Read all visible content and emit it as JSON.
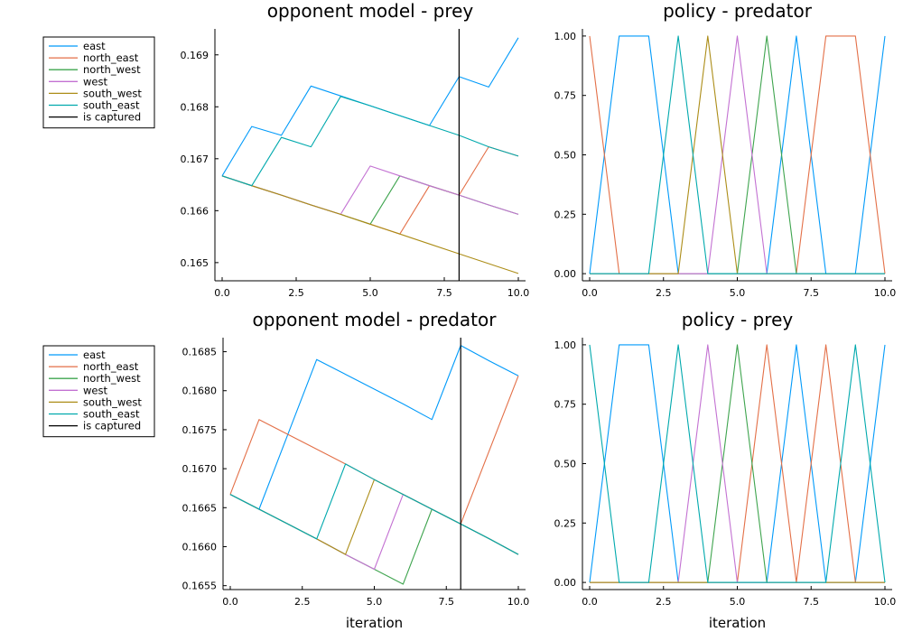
{
  "chart_data": [
    {
      "type": "line",
      "title": "opponent model - prey",
      "xlabel": "",
      "xlim": [
        0,
        10
      ],
      "ylim": [
        0.16465,
        0.1695
      ],
      "xticks": [
        0,
        2.5,
        5,
        7.5,
        10
      ],
      "xtick_labels": [
        "0.0",
        "2.5",
        "5.0",
        "7.5",
        "10.0"
      ],
      "yticks": [
        0.165,
        0.166,
        0.167,
        0.168,
        0.169
      ],
      "ytick_labels": [
        "0.165",
        "0.166",
        "0.167",
        "0.168",
        "0.169"
      ],
      "legend_position": "outside-left",
      "captured_at": 8,
      "x": [
        0,
        1,
        2,
        3,
        4,
        5,
        6,
        7,
        8,
        9,
        10
      ],
      "series": [
        {
          "name": "east",
          "color": "#009AFA",
          "values": [
            0.16667,
            0.16762,
            0.16745,
            0.1684,
            0.16821,
            0.16802,
            0.16783,
            0.16764,
            0.16858,
            0.16838,
            0.16933
          ]
        },
        {
          "name": "north_east",
          "color": "#E36F47",
          "values": [
            0.16667,
            0.16648,
            0.1663,
            0.16611,
            0.16593,
            0.16574,
            0.16555,
            0.16648,
            0.1663,
            0.16723,
            0.16705
          ]
        },
        {
          "name": "north_west",
          "color": "#3EA44E",
          "values": [
            0.16667,
            0.16648,
            0.1663,
            0.16611,
            0.16593,
            0.16574,
            0.16667,
            0.16648,
            0.1663,
            0.16611,
            0.16593
          ]
        },
        {
          "name": "west",
          "color": "#C371D2",
          "values": [
            0.16667,
            0.16648,
            0.1663,
            0.16611,
            0.16593,
            0.16686,
            0.16667,
            0.16648,
            0.1663,
            0.16611,
            0.16593
          ]
        },
        {
          "name": "south_west",
          "color": "#AC8D18",
          "values": [
            0.16667,
            0.16648,
            0.1663,
            0.16611,
            0.16593,
            0.16574,
            0.16555,
            0.16536,
            0.16517,
            0.16498,
            0.16479
          ]
        },
        {
          "name": "south_east",
          "color": "#00A9AD",
          "values": [
            0.16667,
            0.16648,
            0.16741,
            0.16723,
            0.1682,
            0.16802,
            0.16783,
            0.16764,
            0.16745,
            0.16723,
            0.16705
          ]
        },
        {
          "name": "is captured",
          "color": "#000000",
          "kind": "vline"
        }
      ]
    },
    {
      "type": "line",
      "title": "policy - predator",
      "xlabel": "",
      "xlim": [
        0,
        10
      ],
      "ylim": [
        -0.03,
        1.03
      ],
      "xticks": [
        0,
        2.5,
        5,
        7.5,
        10
      ],
      "xtick_labels": [
        "0.0",
        "2.5",
        "5.0",
        "7.5",
        "10.0"
      ],
      "yticks": [
        0,
        0.25,
        0.5,
        0.75,
        1
      ],
      "ytick_labels": [
        "0.00",
        "0.25",
        "0.50",
        "0.75",
        "1.00"
      ],
      "x": [
        0,
        1,
        2,
        3,
        4,
        5,
        6,
        7,
        8,
        9,
        10
      ],
      "series": [
        {
          "color": "#009AFA",
          "values": [
            0,
            1,
            1,
            0,
            0,
            0,
            0,
            1,
            0,
            0,
            1
          ]
        },
        {
          "color": "#E36F47",
          "values": [
            1,
            0,
            0,
            0,
            0,
            0,
            0,
            0,
            1,
            1,
            0
          ]
        },
        {
          "color": "#3EA44E",
          "values": [
            0,
            0,
            0,
            0,
            0,
            0,
            1,
            0,
            0,
            0,
            0
          ]
        },
        {
          "color": "#C371D2",
          "values": [
            0,
            0,
            0,
            0,
            0,
            1,
            0,
            0,
            0,
            0,
            0
          ]
        },
        {
          "color": "#AC8D18",
          "values": [
            0,
            0,
            0,
            0,
            1,
            0,
            0,
            0,
            0,
            0,
            0
          ]
        },
        {
          "color": "#00A9AD",
          "values": [
            0,
            0,
            0,
            1,
            0,
            0,
            0,
            0,
            0,
            0,
            0
          ]
        }
      ]
    },
    {
      "type": "line",
      "title": "opponent model - predator",
      "xlabel": "iteration",
      "xlim": [
        0,
        10
      ],
      "ylim": [
        0.16545,
        0.16868
      ],
      "xticks": [
        0,
        2.5,
        5,
        7.5,
        10
      ],
      "xtick_labels": [
        "0.0",
        "2.5",
        "5.0",
        "7.5",
        "10.0"
      ],
      "yticks": [
        0.1655,
        0.166,
        0.1665,
        0.167,
        0.1675,
        0.168,
        0.1685
      ],
      "ytick_labels": [
        "0.1655",
        "0.1660",
        "0.1665",
        "0.1670",
        "0.1675",
        "0.1680",
        "0.1685"
      ],
      "legend_position": "outside-left",
      "captured_at": 8,
      "x": [
        0,
        1,
        2,
        3,
        4,
        5,
        6,
        7,
        8,
        9,
        10
      ],
      "series": [
        {
          "name": "east",
          "color": "#009AFA",
          "values": [
            0.16667,
            0.16648,
            0.16744,
            0.1684,
            0.16821,
            0.16802,
            0.16783,
            0.16763,
            0.16858,
            0.16838,
            0.16819
          ]
        },
        {
          "name": "north_east",
          "color": "#E36F47",
          "values": [
            0.16667,
            0.16763,
            0.16744,
            0.16725,
            0.16706,
            0.16686,
            0.16667,
            0.16648,
            0.16629,
            0.16724,
            0.16819
          ]
        },
        {
          "name": "north_west",
          "color": "#3EA44E",
          "values": [
            0.16667,
            0.16648,
            0.16629,
            0.1661,
            0.1659,
            0.16571,
            0.16552,
            0.16648,
            0.16629,
            0.1661,
            0.1659
          ]
        },
        {
          "name": "west",
          "color": "#C371D2",
          "values": [
            0.16667,
            0.16648,
            0.16629,
            0.1661,
            0.1659,
            0.16571,
            0.16667,
            0.16648,
            0.16629,
            0.1661,
            0.1659
          ]
        },
        {
          "name": "south_west",
          "color": "#AC8D18",
          "values": [
            0.16667,
            0.16648,
            0.16629,
            0.1661,
            0.1659,
            0.16686,
            0.16667,
            0.16648,
            0.16629,
            0.1661,
            0.1659
          ]
        },
        {
          "name": "south_east",
          "color": "#00A9AD",
          "values": [
            0.16667,
            0.16648,
            0.16629,
            0.1661,
            0.16706,
            0.16686,
            0.16667,
            0.16648,
            0.16629,
            0.1661,
            0.1659
          ]
        },
        {
          "name": "is captured",
          "color": "#000000",
          "kind": "vline"
        }
      ]
    },
    {
      "type": "line",
      "title": "policy - prey",
      "xlabel": "iteration",
      "xlim": [
        0,
        10
      ],
      "ylim": [
        -0.03,
        1.03
      ],
      "xticks": [
        0,
        2.5,
        5,
        7.5,
        10
      ],
      "xtick_labels": [
        "0.0",
        "2.5",
        "5.0",
        "7.5",
        "10.0"
      ],
      "yticks": [
        0,
        0.25,
        0.5,
        0.75,
        1
      ],
      "ytick_labels": [
        "0.00",
        "0.25",
        "0.50",
        "0.75",
        "1.00"
      ],
      "x": [
        0,
        1,
        2,
        3,
        4,
        5,
        6,
        7,
        8,
        9,
        10
      ],
      "series": [
        {
          "color": "#009AFA",
          "values": [
            0,
            1,
            1,
            0,
            0,
            0,
            0,
            1,
            0,
            0,
            1
          ]
        },
        {
          "color": "#E36F47",
          "values": [
            0,
            0,
            0,
            0,
            0,
            0,
            1,
            0,
            1,
            0,
            0
          ]
        },
        {
          "color": "#3EA44E",
          "values": [
            0,
            0,
            0,
            0,
            0,
            1,
            0,
            0,
            0,
            0,
            0
          ]
        },
        {
          "color": "#C371D2",
          "values": [
            0,
            0,
            0,
            0,
            1,
            0,
            0,
            0,
            0,
            0,
            0
          ]
        },
        {
          "color": "#AC8D18",
          "values": [
            0,
            0,
            0,
            0,
            0,
            0,
            0,
            0,
            0,
            0,
            0
          ]
        },
        {
          "color": "#00A9AD",
          "values": [
            1,
            0,
            0,
            1,
            0,
            0,
            0,
            0,
            0,
            1,
            0
          ]
        }
      ]
    }
  ]
}
